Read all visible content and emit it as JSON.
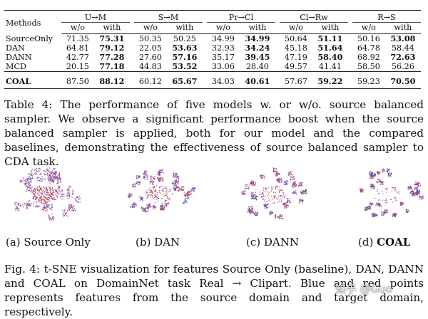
{
  "table": {
    "header_method": "Methods",
    "tasks": [
      "U→M",
      "S→M",
      "Pr→Cl",
      "Cl→Rw",
      "R→S"
    ],
    "subheaders": [
      "w/o",
      "with"
    ],
    "rows": [
      {
        "method": "SourceOnly",
        "values": [
          "71.35",
          "75.31",
          "50.35",
          "50.25",
          "34.99",
          "34.99",
          "50.64",
          "51.11",
          "50.16",
          "53.08"
        ],
        "bold": [
          1,
          5,
          7,
          9
        ]
      },
      {
        "method": "DAN",
        "values": [
          "64.81",
          "79.12",
          "22.05",
          "53.63",
          "32.93",
          "34.24",
          "45.18",
          "51.64",
          "64.78",
          "58.44"
        ],
        "bold": [
          1,
          3,
          5,
          7
        ]
      },
      {
        "method": "DANN",
        "values": [
          "42.77",
          "77.28",
          "27.60",
          "57.16",
          "35.17",
          "39.45",
          "47.19",
          "58.40",
          "68.92",
          "72.63"
        ],
        "bold": [
          1,
          3,
          5,
          7,
          9
        ]
      },
      {
        "method": "MCD",
        "values": [
          "20.15",
          "77.18",
          "44.83",
          "53.52",
          "33.06",
          "28.40",
          "49.57",
          "41.41",
          "58.50",
          "56.26"
        ],
        "bold": [
          1,
          3
        ]
      },
      {
        "method": "COAL",
        "values": [
          "87.50",
          "88.12",
          "60.12",
          "65.67",
          "34.03",
          "40.61",
          "57.67",
          "59.22",
          "59.23",
          "70.50"
        ],
        "bold": [
          1,
          3,
          5,
          7,
          9
        ]
      }
    ]
  },
  "table_caption": "Table 4: The performance of five models w. or w/o. source balanced sampler. We observe a significant performance boost when the source balanced sampler is applied, both for our model and the compared baselines, demonstrating the effectiveness of source balanced sampler to CDA task.",
  "subfigures": [
    {
      "label": "(a) Source Only"
    },
    {
      "label": "(b) DAN"
    },
    {
      "label": "(c) DANN"
    },
    {
      "label_prefix": "(d)",
      "label_bold": "COAL"
    }
  ],
  "figure_caption": "Fig. 4: t-SNE visualization for features Source Only (baseline), DAN, DANN and COAL on DomainNet task Real → Clipart. Blue and red points represents features from the source domain and target domain, respectively.",
  "watermark": "知乎 @Guo",
  "colors": {
    "source": "#3b4fd6",
    "target": "#e0302a",
    "text": "#111111"
  }
}
